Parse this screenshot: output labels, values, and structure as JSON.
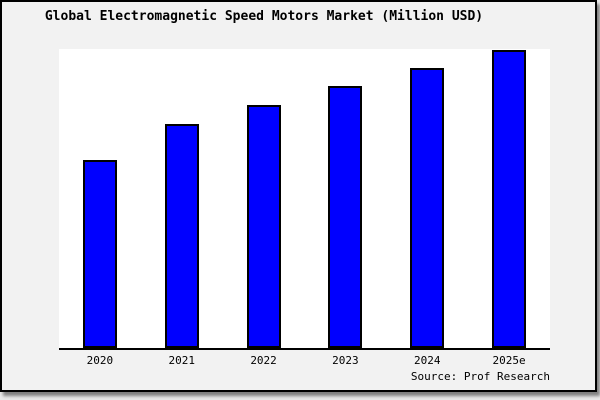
{
  "title": "Global Electromagnetic Speed Motors Market (Million USD)",
  "source_note": "Source: Prof Research",
  "colors": {
    "figure_bg": "#f2f2f2",
    "plot_bg": "#ffffff",
    "bar_fill": "#0000ff",
    "bar_edge": "#000000",
    "axis": "#000000",
    "text": "#000000",
    "border": "#000000"
  },
  "chart_data": {
    "type": "bar",
    "title": "Global Electromagnetic Speed Motors Market (Million USD)",
    "categories": [
      "2020",
      "2021",
      "2022",
      "2023",
      "2024",
      "2025e"
    ],
    "values": [
      63,
      75,
      81.5,
      88,
      94,
      100
    ],
    "value_scale_note": "No y-axis ticks shown; values estimated from bar heights as percent of the 2025e bar",
    "xlabel": "",
    "ylabel": "",
    "ylim": [
      0,
      100
    ],
    "grid": false,
    "legend": null,
    "bar_color": "#0000ff",
    "bar_edge_color": "#000000",
    "source": "Source: Prof Research"
  }
}
